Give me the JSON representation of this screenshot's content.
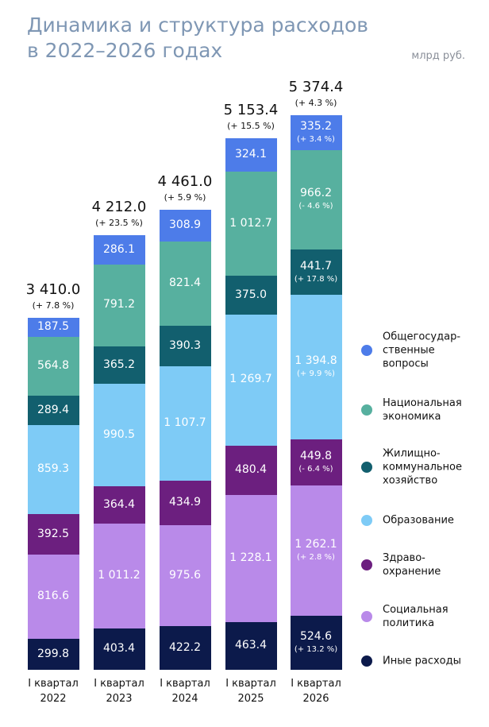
{
  "chart_data": {
    "type": "stacked-bar",
    "title": "Динамика и структура расходов\nв 2022–2026 годах",
    "unit": "млрд руб.",
    "categories": [
      "I квартал\n2022",
      "I квартал\n2023",
      "I квартал\n2024",
      "I квартал\n2025",
      "I квартал\n2026"
    ],
    "totals": [
      3410.0,
      4212.0,
      4461.0,
      5153.4,
      5374.4
    ],
    "total_labels": [
      "3 410.0",
      "4 212.0",
      "4 461.0",
      "5 153.4",
      "5 374.4"
    ],
    "total_changes": [
      "(+ 7.8 %)",
      "(+ 23.5 %)",
      "(+ 5.9 %)",
      "(+ 15.5 %)",
      "(+ 4.3 %)"
    ],
    "series": [
      {
        "name": "Иные расходы",
        "color": "#0c1a4b",
        "values": [
          299.8,
          403.4,
          422.2,
          463.4,
          524.6
        ],
        "value_labels": [
          "299.8",
          "403.4",
          "422.2",
          "463.4",
          "524.6"
        ],
        "change_labels": [
          null,
          null,
          null,
          null,
          "(+ 13.2 %)"
        ]
      },
      {
        "name": "Социальная\nполитика",
        "color": "#b98ae9",
        "values": [
          816.6,
          1011.2,
          975.6,
          1228.1,
          1262.1
        ],
        "value_labels": [
          "816.6",
          "1 011.2",
          "975.6",
          "1 228.1",
          "1 262.1"
        ],
        "change_labels": [
          null,
          null,
          null,
          null,
          "(+ 2.8 %)"
        ]
      },
      {
        "name": "Здраво-\nохранение",
        "color": "#6c1f7f",
        "values": [
          392.5,
          364.4,
          434.9,
          480.4,
          449.8
        ],
        "value_labels": [
          "392.5",
          "364.4",
          "434.9",
          "480.4",
          "449.8"
        ],
        "change_labels": [
          null,
          null,
          null,
          null,
          "(- 6.4 %)"
        ]
      },
      {
        "name": "Образование",
        "color": "#7ecbf6",
        "values": [
          859.3,
          990.5,
          1107.7,
          1269.7,
          1394.8
        ],
        "value_labels": [
          "859.3",
          "990.5",
          "1 107.7",
          "1 269.7",
          "1 394.8"
        ],
        "change_labels": [
          null,
          null,
          null,
          null,
          "(+ 9.9 %)"
        ]
      },
      {
        "name": "Жилищно-\nкоммунальное\nхозяйство",
        "color": "#125f6e",
        "values": [
          289.4,
          365.2,
          390.3,
          375.0,
          441.7
        ],
        "value_labels": [
          "289.4",
          "365.2",
          "390.3",
          "375.0",
          "441.7"
        ],
        "change_labels": [
          null,
          null,
          null,
          null,
          "(+ 17.8 %)"
        ]
      },
      {
        "name": "Национальная\nэкономика",
        "color": "#57b09f",
        "values": [
          564.8,
          791.2,
          821.4,
          1012.7,
          966.2
        ],
        "value_labels": [
          "564.8",
          "791.2",
          "821.4",
          "1 012.7",
          "966.2"
        ],
        "change_labels": [
          null,
          null,
          null,
          null,
          "(- 4.6 %)"
        ]
      },
      {
        "name": "Общегосудар-\nственные\nвопросы",
        "color": "#4d7ce9",
        "values": [
          187.5,
          286.1,
          308.9,
          324.1,
          335.2
        ],
        "value_labels": [
          "187.5",
          "286.1",
          "308.9",
          "324.1",
          "335.2"
        ],
        "change_labels": [
          null,
          null,
          null,
          null,
          "(+ 3.4 %)"
        ]
      }
    ]
  }
}
